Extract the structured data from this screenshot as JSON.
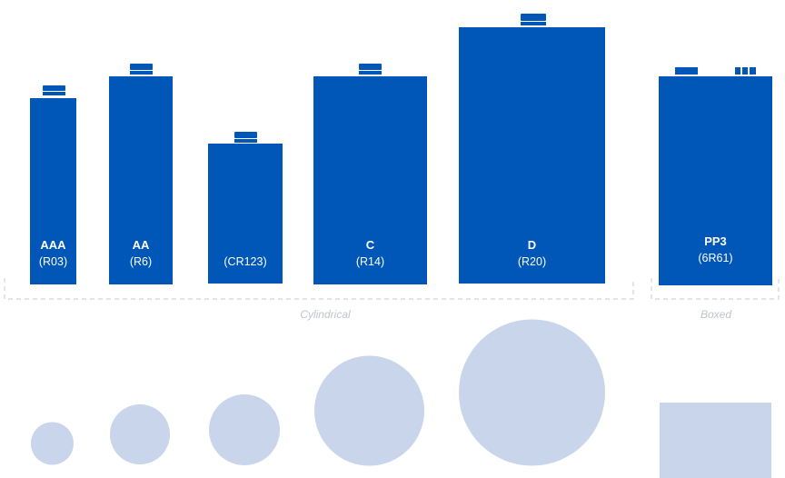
{
  "colors": {
    "battery": "#0057b8",
    "terminal_gap": "#ffffff",
    "footprint": "#c8d5ea",
    "bracket": "#d4d4d4",
    "group_label": "#bfc4cc"
  },
  "batteries": [
    {
      "id": "aaa",
      "name": "AAA",
      "code": "(R03)",
      "shape": "cylinder"
    },
    {
      "id": "aa",
      "name": "AA",
      "code": "(R6)",
      "shape": "cylinder"
    },
    {
      "id": "cr123",
      "name": "",
      "code": "(CR123)",
      "shape": "cylinder"
    },
    {
      "id": "c",
      "name": "C",
      "code": "(R14)",
      "shape": "cylinder"
    },
    {
      "id": "d",
      "name": "D",
      "code": "(R20)",
      "shape": "cylinder"
    },
    {
      "id": "pp3",
      "name": "PP3",
      "code": "(6R61)",
      "shape": "box"
    }
  ],
  "groups": [
    {
      "id": "cylindrical",
      "label": "Cylindrical"
    },
    {
      "id": "boxed",
      "label": "Boxed"
    }
  ]
}
